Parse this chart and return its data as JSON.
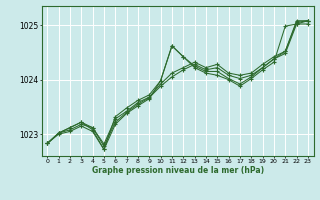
{
  "background_color": "#cceaea",
  "grid_color": "#ffffff",
  "line_color": "#2d6a2d",
  "title": "Graphe pression niveau de la mer (hPa)",
  "xlim": [
    -0.5,
    23.5
  ],
  "ylim": [
    1022.6,
    1025.35
  ],
  "yticks": [
    1023,
    1024,
    1025
  ],
  "xticks": [
    0,
    1,
    2,
    3,
    4,
    5,
    6,
    7,
    8,
    9,
    10,
    11,
    12,
    13,
    14,
    15,
    16,
    17,
    18,
    19,
    20,
    21,
    22,
    23
  ],
  "series": [
    [
      1022.83,
      1023.0,
      1023.05,
      1023.15,
      1023.05,
      1022.72,
      1023.18,
      1023.38,
      1023.52,
      1023.65,
      1023.98,
      1024.62,
      1024.42,
      1024.22,
      1024.12,
      1024.08,
      1024.0,
      1023.88,
      1024.02,
      1024.18,
      1024.32,
      1024.98,
      1025.02,
      1025.02
    ],
    [
      1022.83,
      1023.02,
      1023.08,
      1023.18,
      1023.12,
      1022.78,
      1023.22,
      1023.4,
      1023.55,
      1023.67,
      1023.88,
      1024.05,
      1024.18,
      1024.28,
      1024.18,
      1024.22,
      1024.08,
      1024.02,
      1024.08,
      1024.22,
      1024.38,
      1024.48,
      1025.02,
      1025.08
    ],
    [
      1022.83,
      1023.02,
      1023.12,
      1023.22,
      1023.12,
      1022.82,
      1023.28,
      1023.42,
      1023.58,
      1023.68,
      1023.92,
      1024.12,
      1024.22,
      1024.32,
      1024.22,
      1024.28,
      1024.12,
      1024.08,
      1024.12,
      1024.28,
      1024.42,
      1024.52,
      1025.05,
      1025.08
    ],
    [
      1022.83,
      1023.02,
      1023.12,
      1023.22,
      1023.08,
      1022.72,
      1023.32,
      1023.48,
      1023.62,
      1023.72,
      1023.98,
      1024.62,
      1024.42,
      1024.25,
      1024.15,
      1024.15,
      1024.02,
      1023.92,
      1024.05,
      1024.22,
      1024.38,
      1024.52,
      1025.08,
      1025.08
    ]
  ],
  "figsize": [
    3.2,
    2.0
  ],
  "dpi": 100
}
